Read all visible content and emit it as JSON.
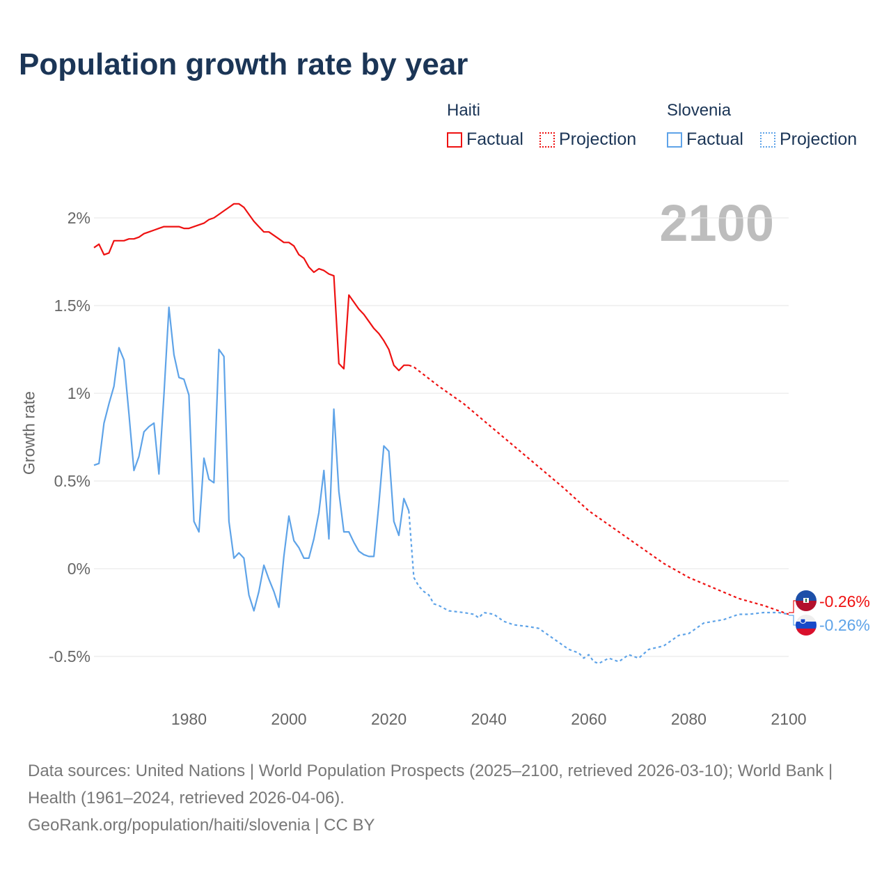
{
  "title": "Population growth rate by year",
  "legend": {
    "groups": [
      {
        "name": "Haiti",
        "factual": "Factual",
        "projection": "Projection",
        "color": "#ee1111"
      },
      {
        "name": "Slovenia",
        "factual": "Factual",
        "projection": "Projection",
        "color": "#5ea3e8"
      }
    ]
  },
  "current_year": "2100",
  "end_labels": {
    "haiti": "-0.26%",
    "slovenia": "-0.26%"
  },
  "source": {
    "line1": "Data sources: United Nations | World Population Prospects (2025–2100, retrieved 2026-03-10); World Bank | Health (1961–2024, retrieved 2026-04-06).",
    "line2": "GeoRank.org/population/haiti/slovenia | CC BY"
  },
  "chart_data": {
    "type": "line",
    "title": "Population growth rate by year",
    "xlabel": "",
    "ylabel": "Growth rate",
    "xlim": [
      1961,
      2100
    ],
    "ylim": [
      -0.75,
      2.1
    ],
    "x_ticks": [
      1980,
      2000,
      2020,
      2040,
      2060,
      2080,
      2100
    ],
    "y_ticks": [
      {
        "v": -0.5,
        "label": "-0.5%"
      },
      {
        "v": 0,
        "label": "0%"
      },
      {
        "v": 0.5,
        "label": "0.5%"
      },
      {
        "v": 1,
        "label": "1%"
      },
      {
        "v": 1.5,
        "label": "1.5%"
      },
      {
        "v": 2,
        "label": "2%"
      }
    ],
    "grid": true,
    "series": [
      {
        "name": "Haiti Factual",
        "color": "#ee1111",
        "dashed": false,
        "start_year": 1961,
        "values": [
          1.83,
          1.85,
          1.79,
          1.8,
          1.87,
          1.87,
          1.87,
          1.88,
          1.88,
          1.89,
          1.91,
          1.92,
          1.93,
          1.94,
          1.95,
          1.95,
          1.95,
          1.95,
          1.94,
          1.94,
          1.95,
          1.96,
          1.97,
          1.99,
          2.0,
          2.02,
          2.04,
          2.06,
          2.08,
          2.08,
          2.06,
          2.02,
          1.98,
          1.95,
          1.92,
          1.92,
          1.9,
          1.88,
          1.86,
          1.86,
          1.84,
          1.79,
          1.77,
          1.72,
          1.69,
          1.71,
          1.7,
          1.68,
          1.67,
          1.17,
          1.14,
          1.56,
          1.52,
          1.48,
          1.45,
          1.41,
          1.37,
          1.34,
          1.3,
          1.25,
          1.16,
          1.13,
          1.16,
          1.16
        ]
      },
      {
        "name": "Haiti Projection",
        "color": "#ee1111",
        "dashed": true,
        "points": [
          [
            2024,
            1.16
          ],
          [
            2025,
            1.15
          ],
          [
            2030,
            1.04
          ],
          [
            2035,
            0.94
          ],
          [
            2040,
            0.82
          ],
          [
            2045,
            0.7
          ],
          [
            2050,
            0.58
          ],
          [
            2055,
            0.46
          ],
          [
            2060,
            0.33
          ],
          [
            2065,
            0.23
          ],
          [
            2070,
            0.13
          ],
          [
            2075,
            0.03
          ],
          [
            2080,
            -0.05
          ],
          [
            2085,
            -0.11
          ],
          [
            2090,
            -0.17
          ],
          [
            2095,
            -0.21
          ],
          [
            2100,
            -0.26
          ]
        ]
      },
      {
        "name": "Slovenia Factual",
        "color": "#5ea3e8",
        "dashed": false,
        "start_year": 1961,
        "values": [
          0.59,
          0.6,
          0.83,
          0.94,
          1.04,
          1.26,
          1.19,
          0.88,
          0.56,
          0.64,
          0.78,
          0.81,
          0.83,
          0.54,
          0.99,
          1.49,
          1.22,
          1.09,
          1.08,
          0.99,
          0.27,
          0.21,
          0.63,
          0.51,
          0.49,
          1.25,
          1.21,
          0.27,
          0.06,
          0.09,
          0.06,
          -0.15,
          -0.24,
          -0.13,
          0.02,
          -0.06,
          -0.13,
          -0.22,
          0.07,
          0.3,
          0.16,
          0.12,
          0.06,
          0.06,
          0.17,
          0.32,
          0.56,
          0.17,
          0.91,
          0.44,
          0.21,
          0.21,
          0.15,
          0.1,
          0.08,
          0.07,
          0.07,
          0.37,
          0.7,
          0.67,
          0.27,
          0.19,
          0.4,
          0.33
        ]
      },
      {
        "name": "Slovenia Projection",
        "color": "#5ea3e8",
        "dashed": true,
        "points": [
          [
            2024,
            0.33
          ],
          [
            2025,
            -0.05
          ],
          [
            2026,
            -0.1
          ],
          [
            2027,
            -0.13
          ],
          [
            2028,
            -0.15
          ],
          [
            2029,
            -0.2
          ],
          [
            2030,
            -0.21
          ],
          [
            2032,
            -0.24
          ],
          [
            2035,
            -0.25
          ],
          [
            2037,
            -0.26
          ],
          [
            2038,
            -0.28
          ],
          [
            2039,
            -0.25
          ],
          [
            2041,
            -0.26
          ],
          [
            2043,
            -0.3
          ],
          [
            2045,
            -0.32
          ],
          [
            2048,
            -0.33
          ],
          [
            2050,
            -0.34
          ],
          [
            2052,
            -0.38
          ],
          [
            2054,
            -0.42
          ],
          [
            2056,
            -0.46
          ],
          [
            2058,
            -0.48
          ],
          [
            2059,
            -0.51
          ],
          [
            2060,
            -0.49
          ],
          [
            2061,
            -0.53
          ],
          [
            2062,
            -0.54
          ],
          [
            2064,
            -0.51
          ],
          [
            2066,
            -0.53
          ],
          [
            2068,
            -0.49
          ],
          [
            2070,
            -0.51
          ],
          [
            2072,
            -0.46
          ],
          [
            2075,
            -0.44
          ],
          [
            2078,
            -0.38
          ],
          [
            2080,
            -0.37
          ],
          [
            2083,
            -0.31
          ],
          [
            2085,
            -0.3
          ],
          [
            2087,
            -0.29
          ],
          [
            2090,
            -0.26
          ],
          [
            2092,
            -0.26
          ],
          [
            2095,
            -0.25
          ],
          [
            2098,
            -0.25
          ],
          [
            2100,
            -0.26
          ]
        ]
      }
    ]
  }
}
